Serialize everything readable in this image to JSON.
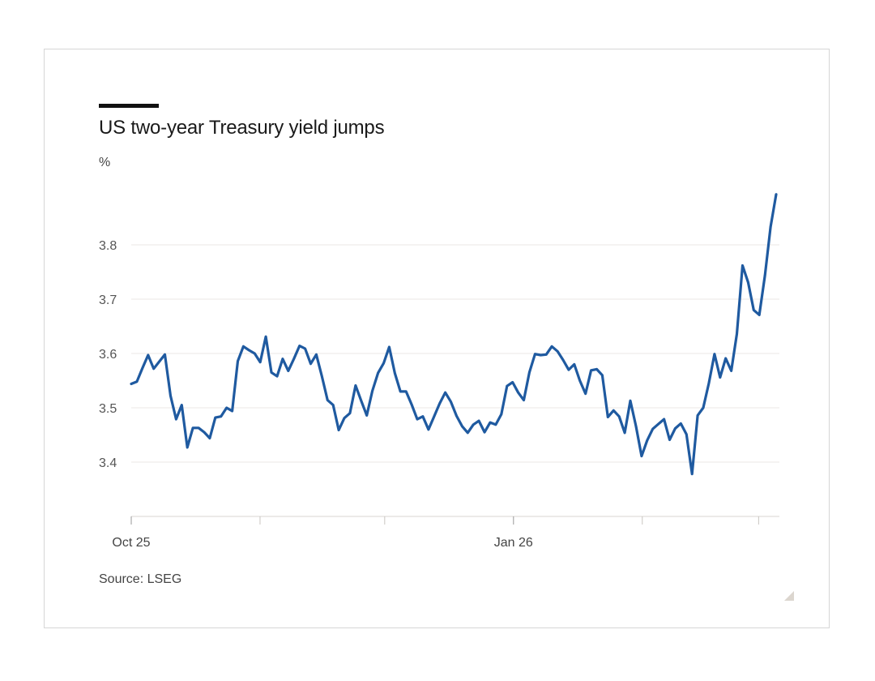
{
  "chart_data": {
    "type": "line",
    "title": "US two-year Treasury yield jumps",
    "ylabel": "%",
    "source": "Source: LSEG",
    "x_start": "2025-10-01",
    "x_end": "2026-03-06",
    "ylim": [
      3.3,
      3.9
    ],
    "yticks": [
      3.4,
      3.5,
      3.6,
      3.7,
      3.8
    ],
    "xtick_labels": [
      {
        "label": "Oct 25",
        "date": "2025-10-01"
      },
      {
        "label": "Jan 26",
        "date": "2026-01-01"
      }
    ],
    "x_minor_ticks": [
      "2025-11-01",
      "2025-12-01",
      "2026-02-01",
      "2026-03-01"
    ],
    "grid": "horizontal",
    "color": "#1f5aa0",
    "series": [
      {
        "values": [
          3.544,
          3.548,
          3.573,
          3.597,
          3.572,
          3.585,
          3.598,
          3.522,
          3.479,
          3.505,
          3.427,
          3.463,
          3.463,
          3.455,
          3.444,
          3.482,
          3.484,
          3.5,
          3.494,
          3.586,
          3.613,
          3.606,
          3.6,
          3.584,
          3.631,
          3.565,
          3.558,
          3.59,
          3.568,
          3.59,
          3.614,
          3.609,
          3.581,
          3.598,
          3.558,
          3.514,
          3.505,
          3.459,
          3.481,
          3.49,
          3.541,
          3.513,
          3.486,
          3.531,
          3.564,
          3.582,
          3.612,
          3.564,
          3.53,
          3.53,
          3.506,
          3.479,
          3.484,
          3.46,
          3.484,
          3.508,
          3.528,
          3.511,
          3.485,
          3.466,
          3.454,
          3.469,
          3.476,
          3.455,
          3.473,
          3.469,
          3.488,
          3.54,
          3.547,
          3.528,
          3.514,
          3.565,
          3.599,
          3.597,
          3.598,
          3.613,
          3.604,
          3.588,
          3.57,
          3.58,
          3.55,
          3.526,
          3.569,
          3.571,
          3.56,
          3.483,
          3.495,
          3.484,
          3.454,
          3.513,
          3.466,
          3.411,
          3.44,
          3.461,
          3.47,
          3.479,
          3.441,
          3.462,
          3.471,
          3.451,
          3.378,
          3.486,
          3.5,
          3.545,
          3.599,
          3.556,
          3.591,
          3.568,
          3.636,
          3.762,
          3.731,
          3.68,
          3.671,
          3.744,
          3.833,
          3.893
        ]
      }
    ]
  }
}
